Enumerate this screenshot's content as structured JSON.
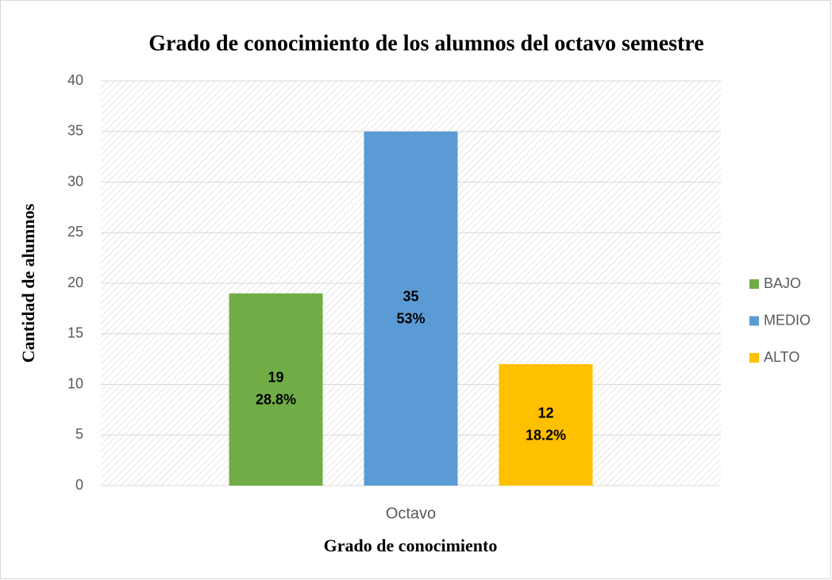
{
  "chart_data": {
    "type": "bar",
    "title": "Grado de conocimiento de los alumnos del octavo semestre",
    "xlabel": "Grado de conocimiento",
    "ylabel": "Cantidad de alumnos",
    "categories": [
      "Octavo"
    ],
    "series": [
      {
        "name": "BAJO",
        "color": "#70ad47",
        "values": [
          19
        ],
        "percent_labels": [
          "28.8%"
        ]
      },
      {
        "name": "MEDIO",
        "color": "#5b9bd5",
        "values": [
          35
        ],
        "percent_labels": [
          "53%"
        ]
      },
      {
        "name": "ALTO",
        "color": "#ffc000",
        "values": [
          12
        ],
        "percent_labels": [
          "18.2%"
        ]
      }
    ],
    "ylim": [
      0,
      40
    ],
    "yticks": [
      0,
      5,
      10,
      15,
      20,
      25,
      30,
      35,
      40
    ],
    "grid": true,
    "legend": "right"
  }
}
